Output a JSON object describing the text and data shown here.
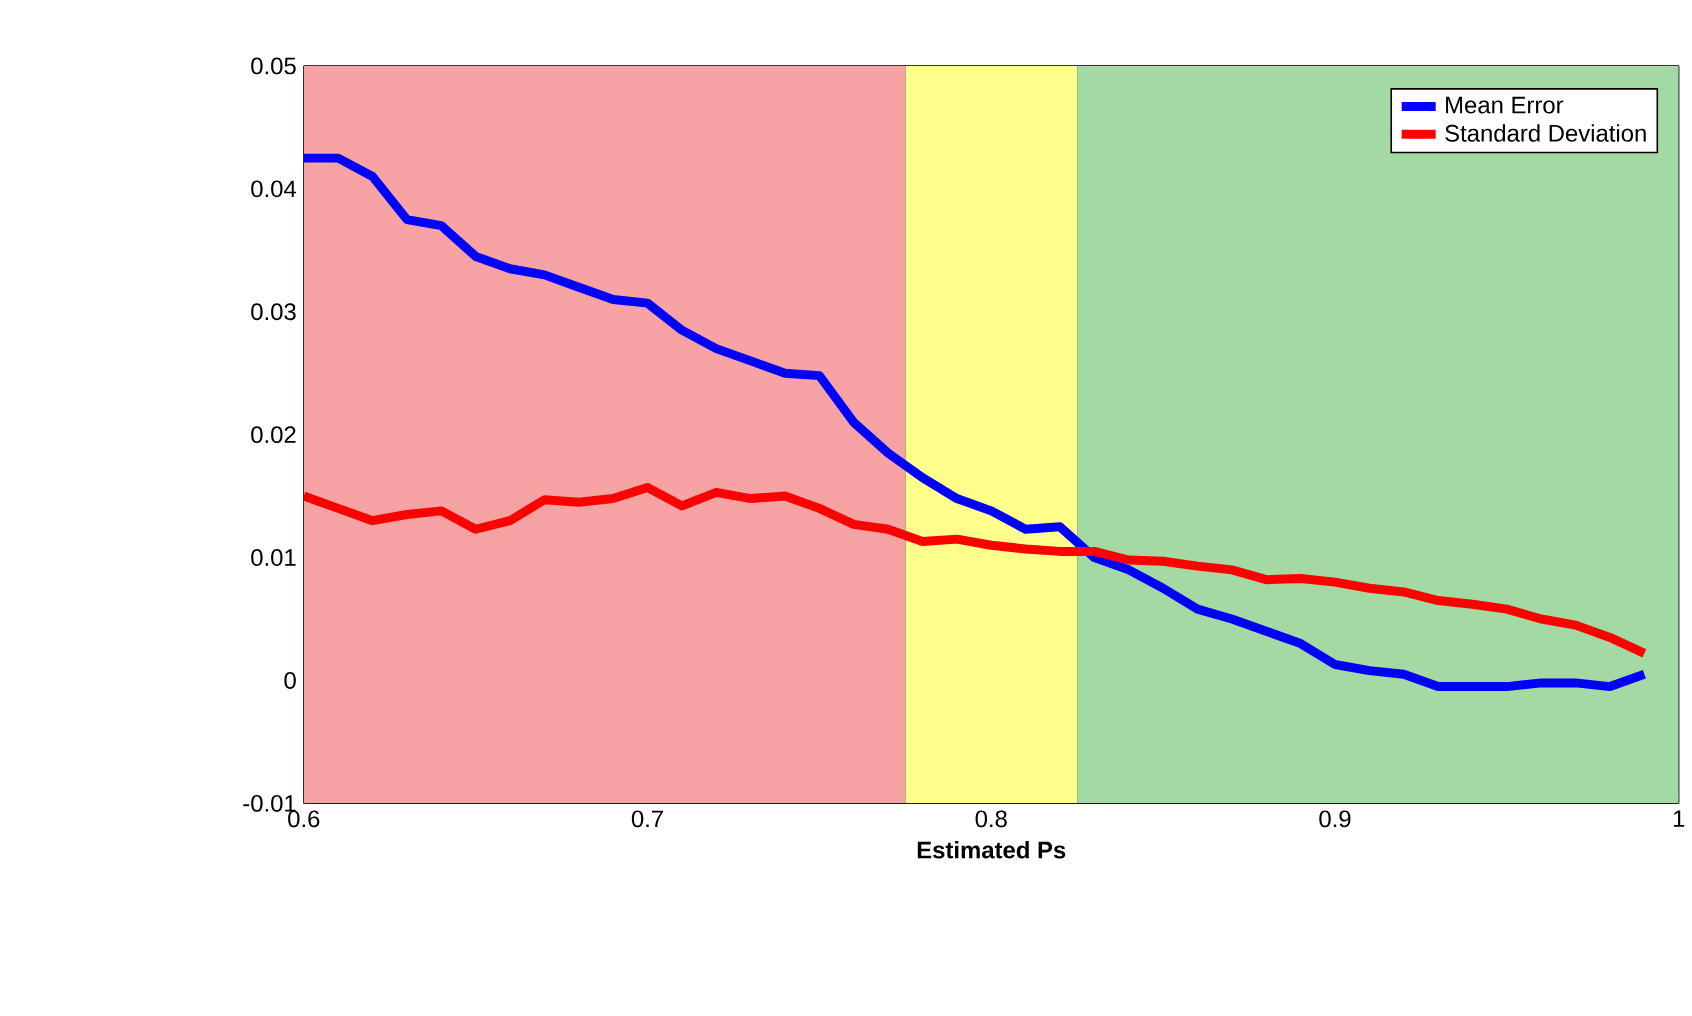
{
  "chart_data": {
    "type": "line",
    "xlabel": "Estimated Ps",
    "x": [
      0.6,
      0.61,
      0.62,
      0.63,
      0.64,
      0.65,
      0.66,
      0.67,
      0.68,
      0.69,
      0.7,
      0.71,
      0.72,
      0.73,
      0.74,
      0.75,
      0.76,
      0.77,
      0.78,
      0.79,
      0.8,
      0.81,
      0.82,
      0.83,
      0.84,
      0.85,
      0.86,
      0.87,
      0.88,
      0.89,
      0.9,
      0.91,
      0.92,
      0.93,
      0.94,
      0.95,
      0.96,
      0.97,
      0.98,
      0.99
    ],
    "series": [
      {
        "name": "Mean Error",
        "color": "#0000ff",
        "values": [
          0.0425,
          0.0425,
          0.041,
          0.0375,
          0.037,
          0.0345,
          0.0335,
          0.033,
          0.032,
          0.031,
          0.0307,
          0.0285,
          0.027,
          0.026,
          0.025,
          0.0248,
          0.021,
          0.0185,
          0.0165,
          0.0148,
          0.0138,
          0.0123,
          0.0125,
          0.01,
          0.009,
          0.0075,
          0.0058,
          0.005,
          0.004,
          0.003,
          0.0013,
          0.0008,
          0.0005,
          -0.0005,
          -0.0005,
          -0.0005,
          -0.0002,
          -0.0002,
          -0.0005,
          0.0005
        ]
      },
      {
        "name": "Standard Deviation",
        "color": "#ff0000",
        "values": [
          0.015,
          0.014,
          0.013,
          0.0135,
          0.0138,
          0.0123,
          0.013,
          0.0147,
          0.0145,
          0.0148,
          0.0157,
          0.0142,
          0.0153,
          0.0148,
          0.015,
          0.014,
          0.0127,
          0.0123,
          0.0113,
          0.0115,
          0.011,
          0.0107,
          0.0105,
          0.0105,
          0.0098,
          0.0097,
          0.0093,
          0.009,
          0.0082,
          0.0083,
          0.008,
          0.0075,
          0.0072,
          0.0065,
          0.0062,
          0.0058,
          0.005,
          0.0045,
          0.0035,
          0.0022
        ]
      }
    ],
    "xlim": [
      0.6,
      1
    ],
    "ylim": [
      -0.01,
      0.05
    ],
    "xticks": [
      0.6,
      {
        "value": 0.625,
        "label": null
      },
      {
        "value": 0.65,
        "label": null
      },
      {
        "value": 0.675,
        "label": null
      },
      0.7,
      {
        "value": 0.725,
        "label": null
      },
      {
        "value": 0.75,
        "label": null
      },
      {
        "value": 0.775,
        "label": null
      },
      0.8,
      {
        "value": 0.825,
        "label": null
      },
      {
        "value": 0.85,
        "label": null
      },
      {
        "value": 0.875,
        "label": null
      },
      0.9,
      {
        "value": 0.925,
        "label": null
      },
      {
        "value": 0.95,
        "label": null
      },
      {
        "value": 0.975,
        "label": null
      },
      1
    ],
    "yticks": [
      -0.01,
      0,
      0.01,
      0.02,
      0.03,
      0.04,
      0.05
    ],
    "bands": [
      {
        "axis": "x",
        "from": 0.6,
        "to": 0.775,
        "color": "#f7a3a3"
      },
      {
        "axis": "x",
        "from": 0.775,
        "to": 0.825,
        "color": "#ffff8c"
      },
      {
        "axis": "x",
        "from": 0.825,
        "to": 1,
        "color": "#a3d9a3"
      }
    ],
    "grid": true,
    "legend": "top right",
    "marker": "none",
    "line_style": "solid"
  }
}
